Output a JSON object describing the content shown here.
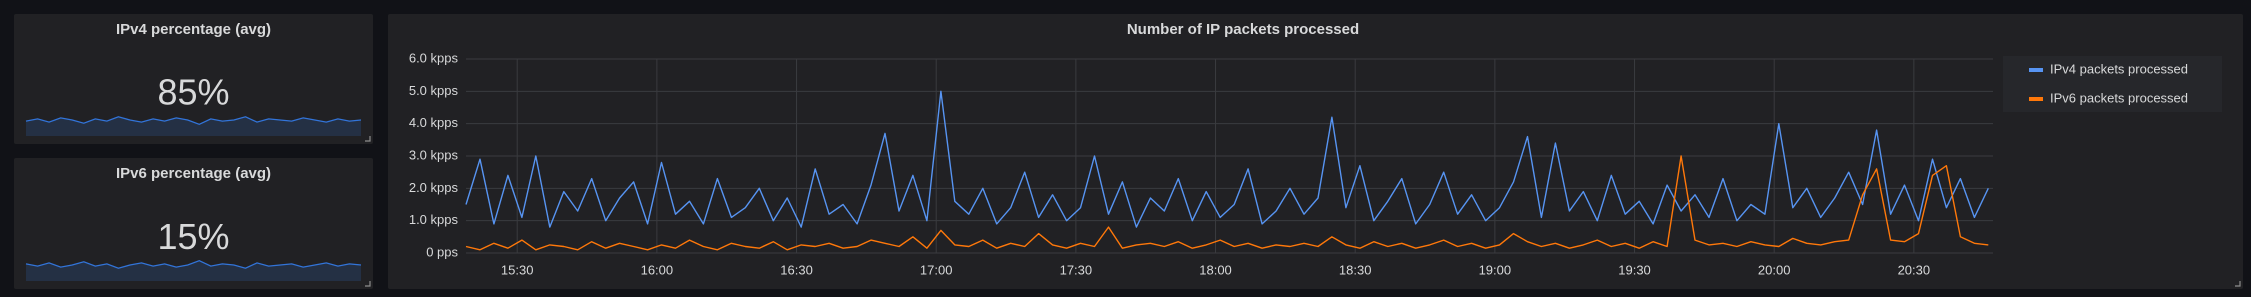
{
  "chart_data": [
    {
      "type": "stat",
      "title": "IPv4 percentage (avg)",
      "value": 85,
      "value_label": "85%",
      "color": "#3274d9",
      "values": [
        84,
        86,
        83,
        87,
        85,
        82,
        86,
        84,
        88,
        85,
        83,
        86,
        84,
        87,
        85,
        81,
        86,
        84,
        85,
        88,
        83,
        86,
        85,
        84,
        87,
        85,
        83,
        86,
        84,
        85
      ],
      "ylim": [
        70,
        100
      ]
    },
    {
      "type": "stat",
      "title": "IPv6 percentage (avg)",
      "value": 15,
      "value_label": "15%",
      "color": "#3274d9",
      "values": [
        16,
        14,
        17,
        13,
        15,
        18,
        14,
        16,
        12,
        15,
        17,
        14,
        16,
        13,
        15,
        19,
        14,
        16,
        15,
        12,
        17,
        14,
        15,
        16,
        13,
        15,
        17,
        14,
        16,
        15
      ],
      "ylim": [
        0,
        30
      ]
    },
    {
      "type": "line",
      "title": "Number of IP packets processed",
      "grid": true,
      "legend": "right",
      "x": [
        "15:19",
        "15:22",
        "15:25",
        "15:28",
        "15:31",
        "15:34",
        "15:37",
        "15:40",
        "15:43",
        "15:46",
        "15:49",
        "15:52",
        "15:55",
        "15:58",
        "16:01",
        "16:04",
        "16:07",
        "16:10",
        "16:13",
        "16:16",
        "16:19",
        "16:22",
        "16:25",
        "16:28",
        "16:31",
        "16:34",
        "16:37",
        "16:40",
        "16:43",
        "16:46",
        "16:49",
        "16:52",
        "16:55",
        "16:58",
        "17:01",
        "17:04",
        "17:07",
        "17:10",
        "17:13",
        "17:16",
        "17:19",
        "17:22",
        "17:25",
        "17:28",
        "17:31",
        "17:34",
        "17:37",
        "17:40",
        "17:43",
        "17:46",
        "17:49",
        "17:52",
        "17:55",
        "17:58",
        "18:01",
        "18:04",
        "18:07",
        "18:10",
        "18:13",
        "18:16",
        "18:19",
        "18:22",
        "18:25",
        "18:28",
        "18:31",
        "18:34",
        "18:37",
        "18:40",
        "18:43",
        "18:46",
        "18:49",
        "18:52",
        "18:55",
        "18:58",
        "19:01",
        "19:04",
        "19:07",
        "19:10",
        "19:13",
        "19:16",
        "19:19",
        "19:22",
        "19:25",
        "19:28",
        "19:31",
        "19:34",
        "19:37",
        "19:40",
        "19:43",
        "19:46",
        "19:49",
        "19:52",
        "19:55",
        "19:58",
        "20:01",
        "20:04",
        "20:07",
        "20:10",
        "20:13",
        "20:16",
        "20:19",
        "20:22",
        "20:25",
        "20:28",
        "20:31",
        "20:34",
        "20:37",
        "20:40",
        "20:43",
        "20:46"
      ],
      "xlim": [
        "15:19",
        "20:47"
      ],
      "xticks": [
        "15:30",
        "16:00",
        "16:30",
        "17:00",
        "17:30",
        "18:00",
        "18:30",
        "19:00",
        "19:30",
        "20:00",
        "20:30"
      ],
      "ylim": [
        0,
        6000
      ],
      "yticks": [
        {
          "value": 0,
          "label": "0 pps"
        },
        {
          "value": 1000,
          "label": "1.0 kpps"
        },
        {
          "value": 2000,
          "label": "2.0 kpps"
        },
        {
          "value": 3000,
          "label": "3.0 kpps"
        },
        {
          "value": 4000,
          "label": "4.0 kpps"
        },
        {
          "value": 5000,
          "label": "5.0 kpps"
        },
        {
          "value": 6000,
          "label": "6.0 kpps"
        }
      ],
      "series": [
        {
          "name": "IPv4 packets processed",
          "color": "#5794f2",
          "values": [
            1500,
            2900,
            900,
            2400,
            1100,
            3000,
            800,
            1900,
            1300,
            2300,
            1000,
            1700,
            2200,
            900,
            2800,
            1200,
            1600,
            900,
            2300,
            1100,
            1400,
            2000,
            1000,
            1700,
            800,
            2600,
            1200,
            1500,
            900,
            2100,
            3700,
            1300,
            2400,
            1000,
            5000,
            1600,
            1200,
            2000,
            900,
            1400,
            2500,
            1100,
            1800,
            1000,
            1400,
            3000,
            1200,
            2200,
            800,
            1700,
            1300,
            2300,
            1000,
            1900,
            1100,
            1500,
            2600,
            900,
            1300,
            2000,
            1200,
            1700,
            4200,
            1400,
            2700,
            1000,
            1600,
            2300,
            900,
            1500,
            2500,
            1200,
            1800,
            1000,
            1400,
            2200,
            3600,
            1100,
            3400,
            1300,
            1900,
            1000,
            2400,
            1200,
            1600,
            900,
            2100,
            1300,
            1800,
            1100,
            2300,
            1000,
            1500,
            1200,
            4000,
            1400,
            2000,
            1100,
            1700,
            2500,
            1500,
            3800,
            1200,
            2100,
            1000,
            2900,
            1400,
            2300,
            1100,
            2000
          ]
        },
        {
          "name": "IPv6 packets processed",
          "color": "#ff780a",
          "values": [
            200,
            100,
            300,
            150,
            400,
            100,
            250,
            200,
            100,
            350,
            150,
            300,
            200,
            100,
            250,
            150,
            400,
            200,
            100,
            300,
            200,
            150,
            350,
            100,
            250,
            200,
            300,
            150,
            200,
            400,
            300,
            200,
            500,
            150,
            700,
            250,
            200,
            400,
            150,
            300,
            200,
            600,
            250,
            150,
            300,
            200,
            800,
            150,
            250,
            300,
            200,
            350,
            150,
            250,
            400,
            200,
            300,
            150,
            250,
            200,
            300,
            200,
            500,
            250,
            150,
            350,
            200,
            300,
            150,
            250,
            400,
            200,
            300,
            150,
            250,
            600,
            350,
            200,
            300,
            150,
            250,
            400,
            200,
            300,
            150,
            350,
            200,
            3000,
            400,
            250,
            300,
            200,
            350,
            250,
            200,
            450,
            300,
            250,
            350,
            400,
            1800,
            2600,
            400,
            350,
            600,
            2400,
            2700,
            500,
            300,
            250
          ]
        }
      ]
    }
  ]
}
